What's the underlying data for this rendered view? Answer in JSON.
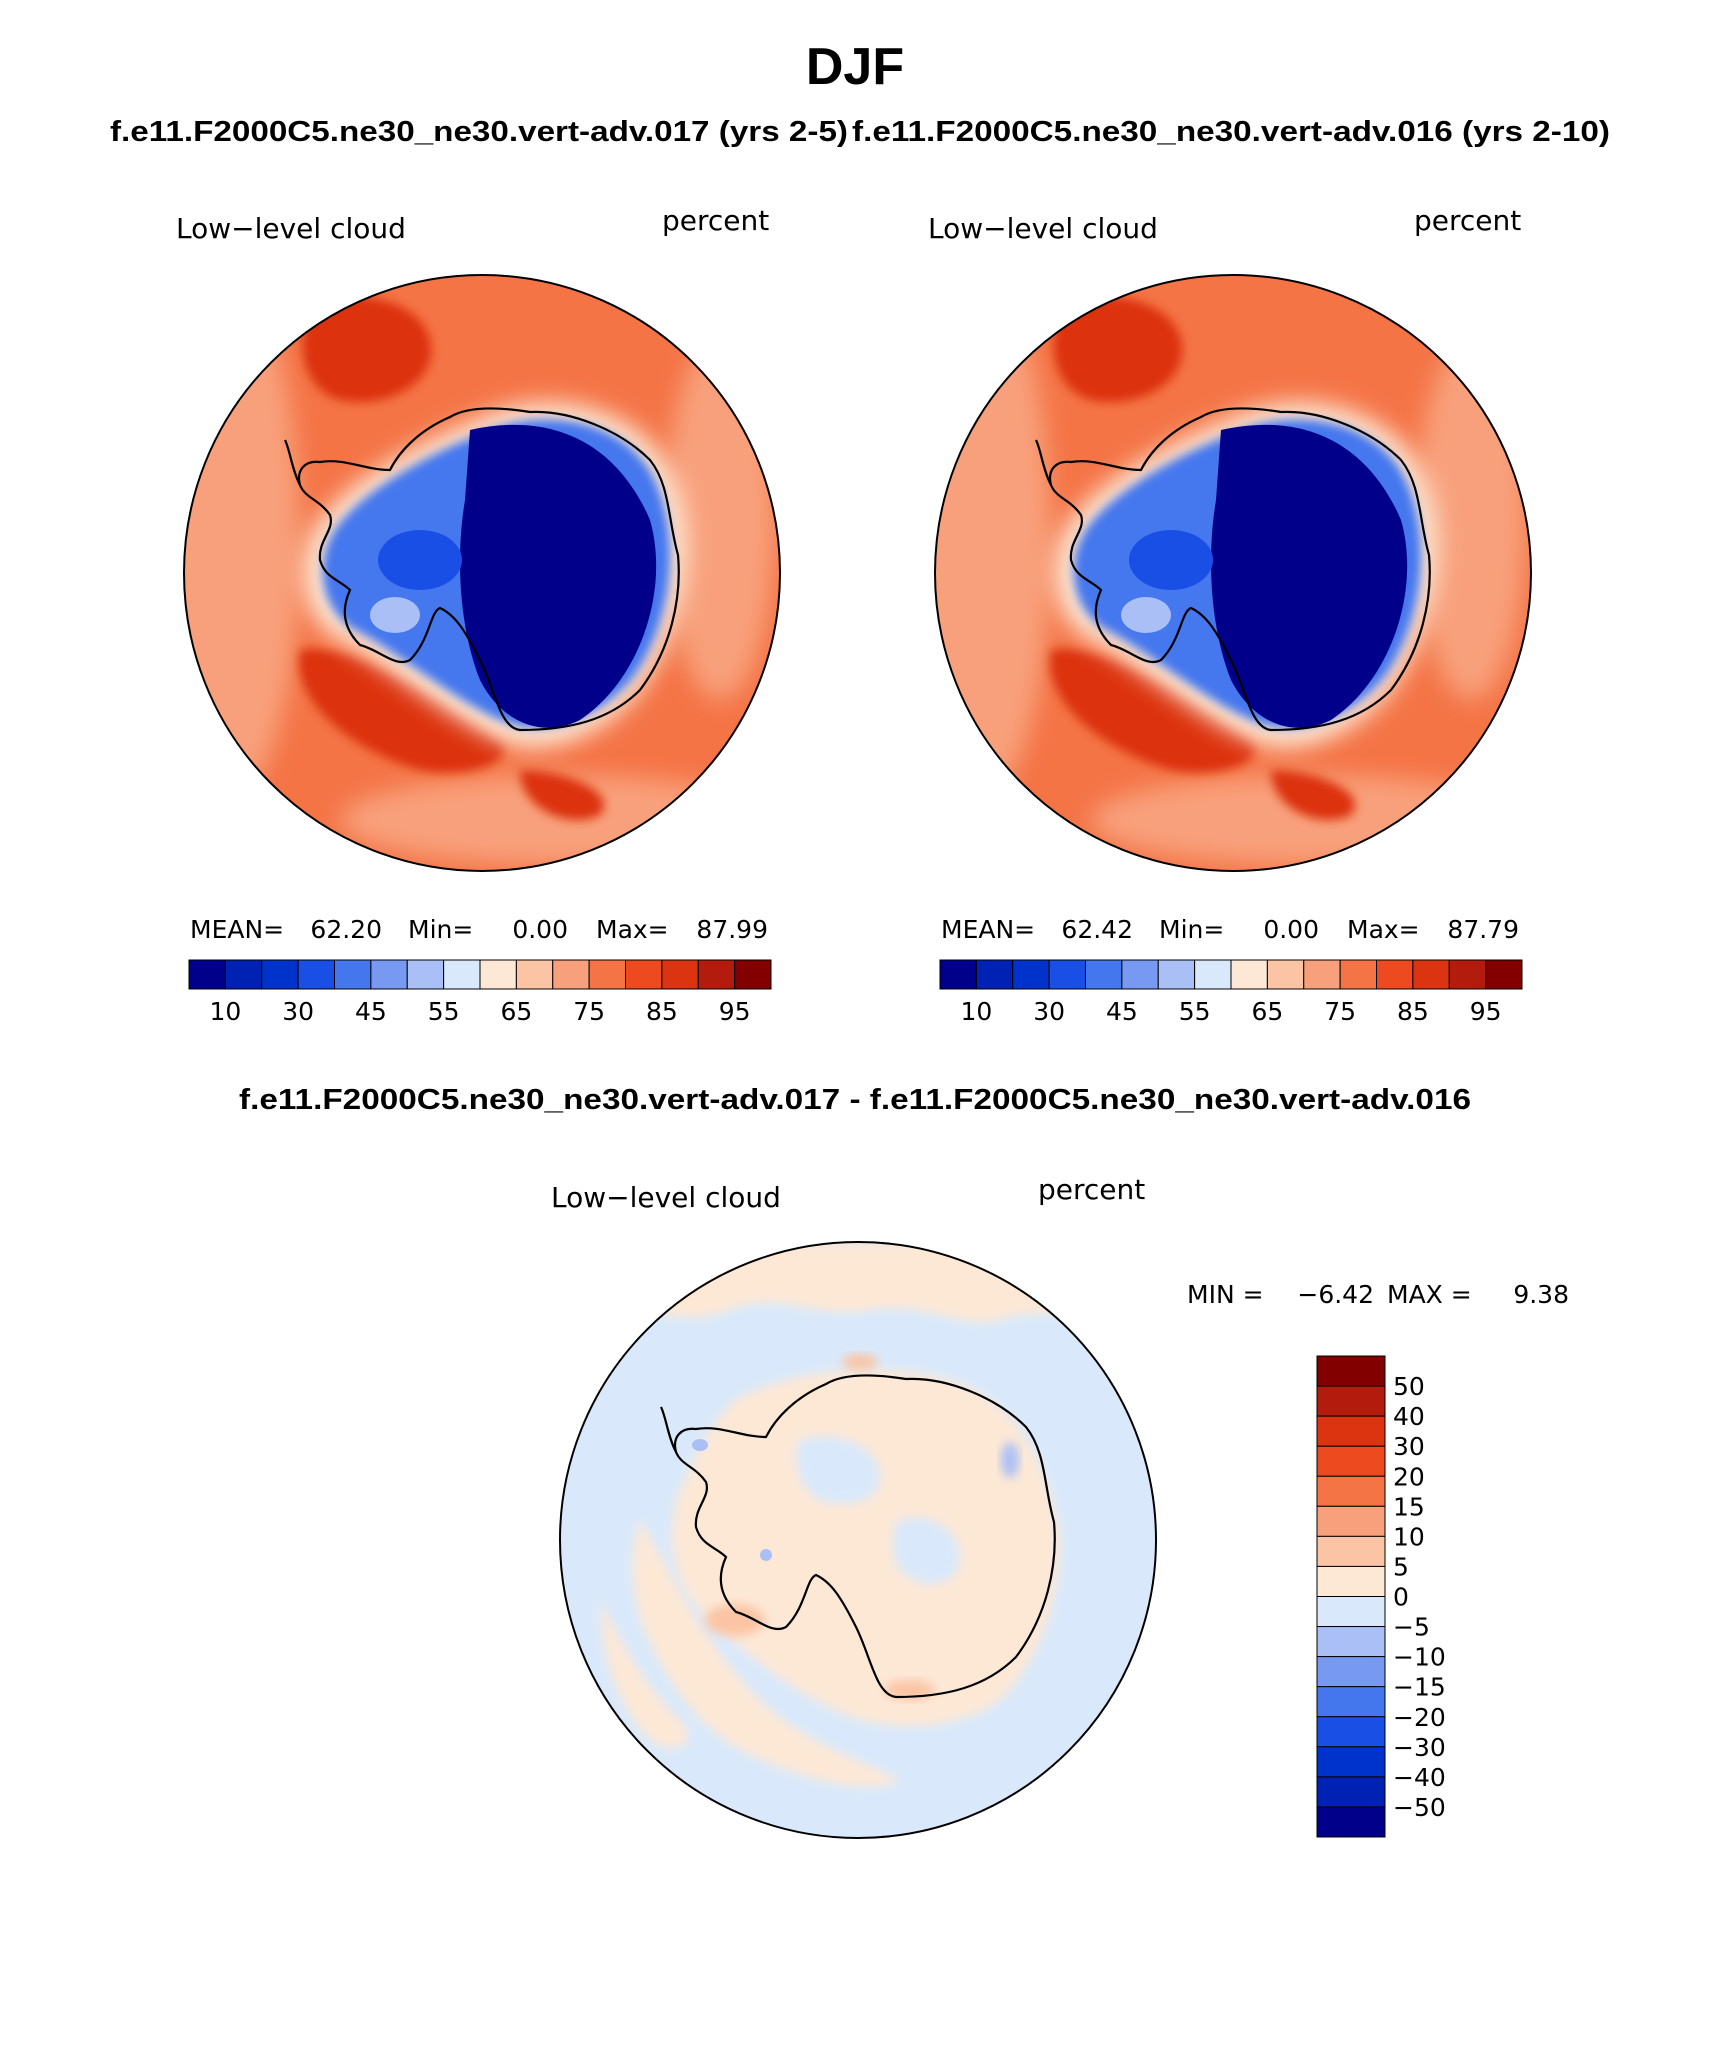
{
  "figure": {
    "season": "DJF",
    "case_titles": [
      "f.e11.F2000C5.ne30_ne30.vert-adv.017 (yrs 2-5)",
      "f.e11.F2000C5.ne30_ne30.vert-adv.016 (yrs 2-10)"
    ],
    "diff_title": "f.e11.F2000C5.ne30_ne30.vert-adv.017 - f.e11.F2000C5.ne30_ne30.vert-adv.016",
    "projection": "south polar stereographic",
    "variable_label": "Low−level cloud",
    "units_label": "percent"
  },
  "chart_data": [
    {
      "type": "heatmap",
      "panel": "case-017",
      "variable": "Low−level cloud",
      "units": "percent",
      "stats": {
        "mean_label": "MEAN=",
        "mean": "62.20",
        "min_label": "Min=",
        "min": "0.00",
        "max_label": "Max=",
        "max": "87.99"
      },
      "colorbar": {
        "orientation": "horizontal",
        "levels": [
          10,
          20,
          30,
          40,
          45,
          50,
          55,
          60,
          65,
          70,
          75,
          80,
          85,
          90,
          95
        ],
        "tick_labels": [
          "10",
          "30",
          "45",
          "55",
          "65",
          "75",
          "85",
          "95"
        ],
        "colors": [
          "#00008b",
          "#0022b4",
          "#0033cc",
          "#1a4fe6",
          "#4477ee",
          "#7799f2",
          "#aabff6",
          "#d9e9fb",
          "#fde8d6",
          "#fbc4a4",
          "#f8a07c",
          "#f47446",
          "#ee4a20",
          "#dc3310",
          "#b31c0c",
          "#820000"
        ]
      }
    },
    {
      "type": "heatmap",
      "panel": "case-016",
      "variable": "Low−level cloud",
      "units": "percent",
      "stats": {
        "mean_label": "MEAN=",
        "mean": "62.42",
        "min_label": "Min=",
        "min": "0.00",
        "max_label": "Max=",
        "max": "87.79"
      },
      "colorbar": {
        "orientation": "horizontal",
        "levels": [
          10,
          20,
          30,
          40,
          45,
          50,
          55,
          60,
          65,
          70,
          75,
          80,
          85,
          90,
          95
        ],
        "tick_labels": [
          "10",
          "30",
          "45",
          "55",
          "65",
          "75",
          "85",
          "95"
        ],
        "colors": [
          "#00008b",
          "#0022b4",
          "#0033cc",
          "#1a4fe6",
          "#4477ee",
          "#7799f2",
          "#aabff6",
          "#d9e9fb",
          "#fde8d6",
          "#fbc4a4",
          "#f8a07c",
          "#f47446",
          "#ee4a20",
          "#dc3310",
          "#b31c0c",
          "#820000"
        ]
      }
    },
    {
      "type": "heatmap",
      "panel": "difference",
      "variable": "Low−level cloud",
      "units": "percent",
      "stats": {
        "min_label": "MIN =",
        "min": "−6.42",
        "max_label": "MAX =",
        "max": "9.38"
      },
      "colorbar": {
        "orientation": "vertical",
        "levels": [
          50,
          40,
          30,
          20,
          15,
          10,
          5,
          0,
          -5,
          -10,
          -15,
          -20,
          -30,
          -40,
          -50
        ],
        "tick_labels": [
          "50",
          "40",
          "30",
          "20",
          "15",
          "10",
          "5",
          "0",
          "−5",
          "−10",
          "−15",
          "−20",
          "−30",
          "−40",
          "−50"
        ],
        "colors": [
          "#820000",
          "#b31c0c",
          "#dc3310",
          "#ee4a20",
          "#f47446",
          "#f8a07c",
          "#fbc4a4",
          "#fde8d6",
          "#d9e9fb",
          "#aabff6",
          "#7799f2",
          "#4477ee",
          "#1a4fe6",
          "#0033cc",
          "#0022b4",
          "#00008b"
        ]
      }
    }
  ]
}
